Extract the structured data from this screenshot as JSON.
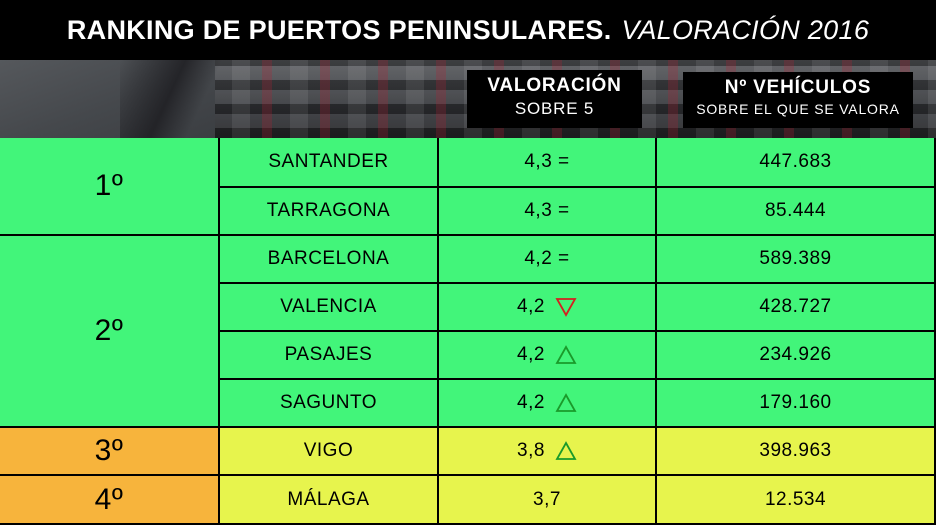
{
  "title": {
    "main": "RANKING DE PUERTOS PENINSULARES.",
    "sub": "VALORACIÓN 2016"
  },
  "headers": {
    "valoracion": {
      "line1": "VALORACIÓN",
      "line2": "SOBRE 5"
    },
    "vehiculos": {
      "line1": "Nº VEHÍCULOS",
      "line2": "SOBRE EL QUE SE VALORA"
    }
  },
  "ranks": [
    {
      "label": "1º",
      "color": "#42f57a"
    },
    {
      "label": "2º",
      "color": "#42f57a"
    },
    {
      "label": "3º",
      "color": "#f7b43c"
    },
    {
      "label": "4º",
      "color": "#f7b43c"
    }
  ],
  "rows": [
    {
      "port": "SANTANDER",
      "value": "4,3 =",
      "trend": "none",
      "vehicles": "447.683"
    },
    {
      "port": "TARRAGONA",
      "value": "4,3 =",
      "trend": "none",
      "vehicles": "85.444"
    },
    {
      "port": "BARCELONA",
      "value": "4,2 =",
      "trend": "none",
      "vehicles": "589.389"
    },
    {
      "port": "VALENCIA",
      "value": "4,2",
      "trend": "down",
      "vehicles": "428.727"
    },
    {
      "port": "PASAJES",
      "value": "4,2",
      "trend": "up",
      "vehicles": "234.926"
    },
    {
      "port": "SAGUNTO",
      "value": "4,2",
      "trend": "up",
      "vehicles": "179.160"
    },
    {
      "port": "VIGO",
      "value": "3,8",
      "trend": "up",
      "vehicles": "398.963"
    },
    {
      "port": "MÁLAGA",
      "value": "3,7",
      "trend": "none",
      "vehicles": "12.534"
    }
  ],
  "colors": {
    "green": "#42f57a",
    "yellow": "#e7f44d",
    "orange": "#f7b43c",
    "up_arrow": "#1a9a2a",
    "down_arrow": "#d42020"
  }
}
